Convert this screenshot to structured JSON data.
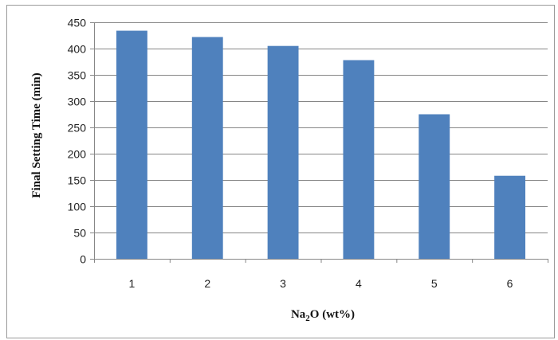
{
  "chart_data": {
    "type": "bar",
    "categories": [
      "1",
      "2",
      "3",
      "4",
      "5",
      "6"
    ],
    "values": [
      434,
      422,
      405,
      378,
      275,
      158
    ],
    "xlabel_prefix": "Na",
    "xlabel_subscript": "2",
    "xlabel_suffix": "O (wt%)",
    "ylabel": "Final Setting Time (min)",
    "ylim": [
      0,
      450
    ],
    "yticks": [
      "0",
      "50",
      "100",
      "150",
      "200",
      "250",
      "300",
      "350",
      "400",
      "450"
    ],
    "grid": true,
    "bar_color": "#4F81BD",
    "grid_color": "#868686"
  }
}
